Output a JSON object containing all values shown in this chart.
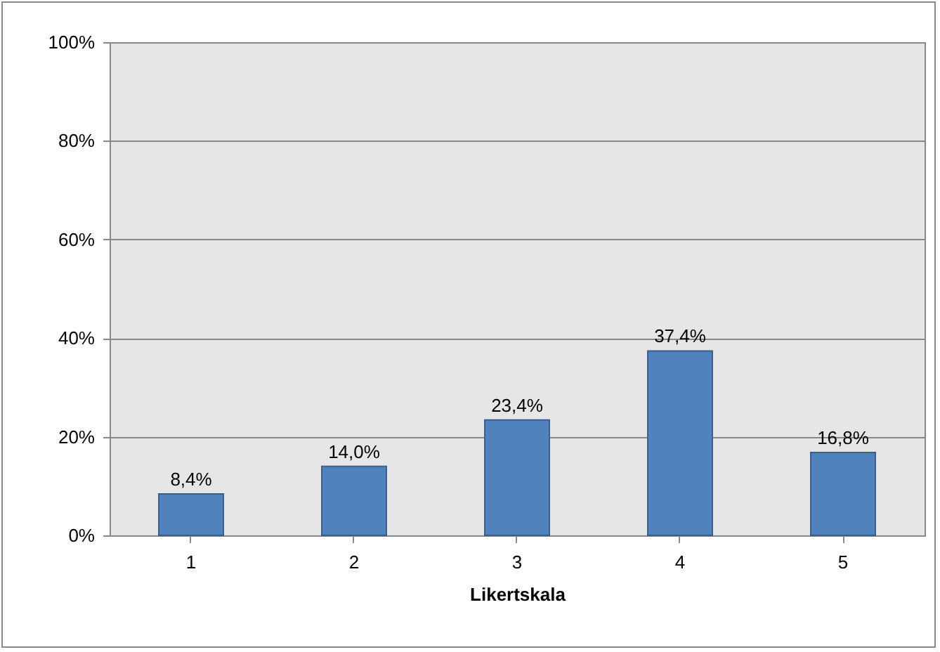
{
  "chart_data": {
    "type": "bar",
    "xlabel": "Likertskala",
    "categories": [
      "1",
      "2",
      "3",
      "4",
      "5"
    ],
    "values": [
      8.4,
      14.0,
      23.4,
      37.4,
      16.8
    ],
    "value_labels": [
      "8,4%",
      "14,0%",
      "23,4%",
      "37,4%",
      "16,8%"
    ],
    "color": "#4f81bd",
    "ylim": [
      0,
      100
    ],
    "yticks": [
      {
        "value": 0,
        "label": "0%"
      },
      {
        "value": 20,
        "label": "20%"
      },
      {
        "value": 40,
        "label": "40%"
      },
      {
        "value": 60,
        "label": "60%"
      },
      {
        "value": 80,
        "label": "80%"
      },
      {
        "value": 100,
        "label": "100%"
      }
    ],
    "grid": "y"
  }
}
